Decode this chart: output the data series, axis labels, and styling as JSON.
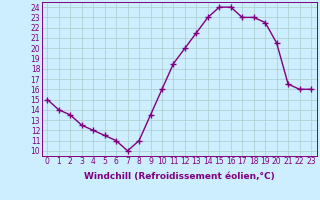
{
  "x": [
    0,
    1,
    2,
    3,
    4,
    5,
    6,
    7,
    8,
    9,
    10,
    11,
    12,
    13,
    14,
    15,
    16,
    17,
    18,
    19,
    20,
    21,
    22,
    23
  ],
  "y": [
    15,
    14,
    13.5,
    12.5,
    12,
    11.5,
    11,
    10,
    11,
    13.5,
    16,
    18.5,
    20,
    21.5,
    23,
    24,
    24,
    23,
    23,
    22.5,
    20.5,
    16.5,
    16,
    16
  ],
  "line_color": "#800080",
  "marker": "+",
  "marker_size": 4,
  "bg_color": "#cceeff",
  "grid_color": "#aacccc",
  "xlabel": "Windchill (Refroidissement éolien,°C)",
  "xlabel_fontsize": 6.5,
  "yticks": [
    10,
    11,
    12,
    13,
    14,
    15,
    16,
    17,
    18,
    19,
    20,
    21,
    22,
    23,
    24
  ],
  "xticks": [
    0,
    1,
    2,
    3,
    4,
    5,
    6,
    7,
    8,
    9,
    10,
    11,
    12,
    13,
    14,
    15,
    16,
    17,
    18,
    19,
    20,
    21,
    22,
    23
  ],
  "ylim": [
    9.5,
    24.5
  ],
  "xlim": [
    -0.5,
    23.5
  ],
  "tick_fontsize": 5.5,
  "line_width": 1.0
}
